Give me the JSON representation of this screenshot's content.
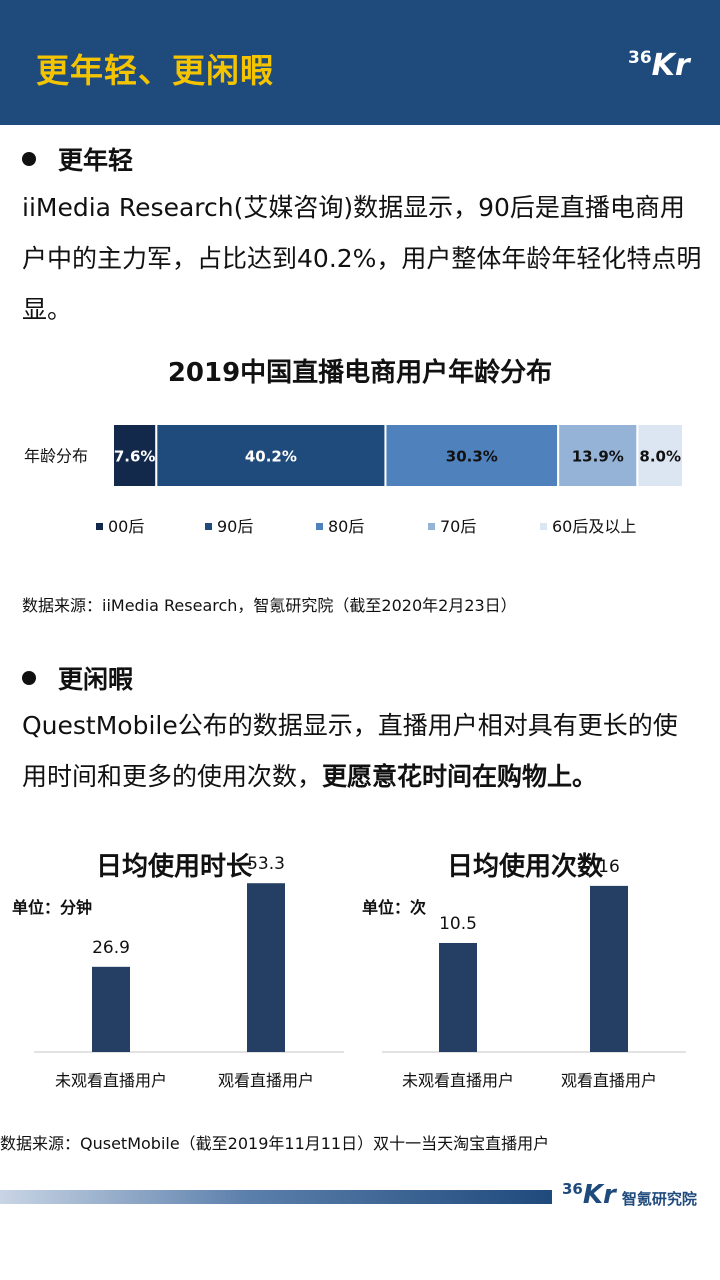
{
  "header": {
    "title": "更年轻、更闲暇",
    "logo_num": "36",
    "logo_k": "Kr"
  },
  "section1": {
    "bullet": "更年轻",
    "para": "iiMedia Research(艾媒咨询)数据显示，90后是直播电商用户中的主力军，占比达到40.2%，用户整体年龄年轻化特点明显。"
  },
  "section2": {
    "bullet": "更闲暇",
    "para_normal": "QuestMobile公布的数据显示，直播用户相对具有更长的使用时间和更多的使用次数，",
    "para_bold": "更愿意花时间在购物上。"
  },
  "source1": "数据来源：iiMedia Research，智氪研究院（截至2020年2月23日）",
  "source2": "数据来源：QusetMobile（截至2019年11月11日）双十一当天淘宝直播用户",
  "footer": {
    "logo_num": "36",
    "logo_k": "Kr",
    "institute": "智氪研究院"
  },
  "chart_data": [
    {
      "type": "bar",
      "orientation": "horizontal-stacked",
      "title": "2019中国直播电商用户年龄分布",
      "categories": [
        "年龄分布"
      ],
      "series": [
        {
          "name": "00后",
          "values": [
            7.6
          ],
          "label": "7.6%",
          "color": "#13294b",
          "label_color": "#ffffff"
        },
        {
          "name": "90后",
          "values": [
            40.2
          ],
          "label": "40.2%",
          "color": "#1f4a7c",
          "label_color": "#ffffff"
        },
        {
          "name": "80后",
          "values": [
            30.3
          ],
          "label": "30.3%",
          "color": "#4f81bd",
          "label_color": "#111111"
        },
        {
          "name": "70后",
          "values": [
            13.9
          ],
          "label": "13.9%",
          "color": "#95b3d7",
          "label_color": "#111111"
        },
        {
          "name": "60后及以上",
          "values": [
            8.0
          ],
          "label": "8.0%",
          "color": "#dce6f2",
          "label_color": "#111111"
        }
      ],
      "legend": "bottom"
    },
    {
      "type": "bar",
      "title": "日均使用时长",
      "unit_label": "单位：分钟",
      "categories": [
        "未观看直播用户",
        "观看直播用户"
      ],
      "values": [
        26.9,
        53.3
      ],
      "labels": [
        "26.9",
        "53.3"
      ],
      "ylim": [
        0,
        60
      ],
      "color": "#243f63"
    },
    {
      "type": "bar",
      "title": "日均使用次数",
      "unit_label": "单位：次",
      "categories": [
        "未观看直播用户",
        "观看直播用户"
      ],
      "values": [
        10.5,
        16
      ],
      "labels": [
        "10.5",
        "16"
      ],
      "ylim": [
        0,
        18.3
      ],
      "color": "#243f63"
    }
  ]
}
